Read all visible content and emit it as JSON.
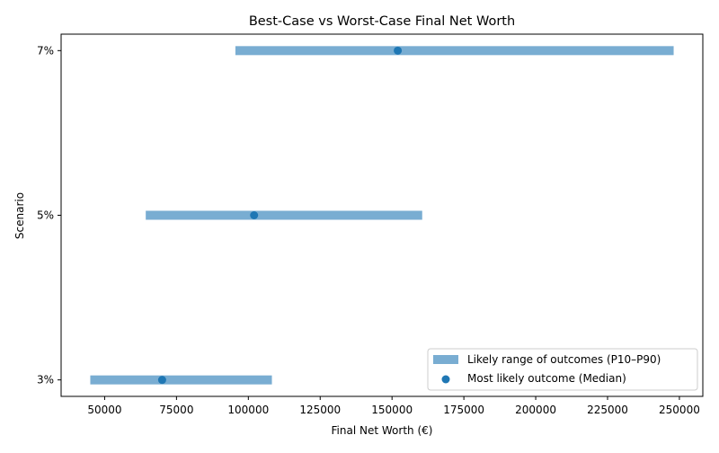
{
  "chart_data": {
    "type": "range-dot",
    "title": "Best-Case vs Worst-Case Final Net Worth",
    "xlabel": "Final Net Worth (€)",
    "ylabel": "Scenario",
    "xlim": [
      34850,
      258150
    ],
    "xticks": [
      50000,
      75000,
      100000,
      125000,
      150000,
      175000,
      200000,
      225000,
      250000
    ],
    "categories": [
      "3%",
      "5%",
      "7%"
    ],
    "series": [
      {
        "name": "Likely range of outcomes (P10–P90)",
        "kind": "range",
        "color": "#1f77b4",
        "opacity": 0.6,
        "low": [
          45000,
          64300,
          95500
        ],
        "high": [
          108200,
          160500,
          248000
        ]
      },
      {
        "name": "Most likely outcome (Median)",
        "kind": "point",
        "color": "#1f77b4",
        "values": [
          70000,
          102000,
          152000
        ]
      }
    ],
    "grid": false,
    "legend": "lower-right"
  }
}
